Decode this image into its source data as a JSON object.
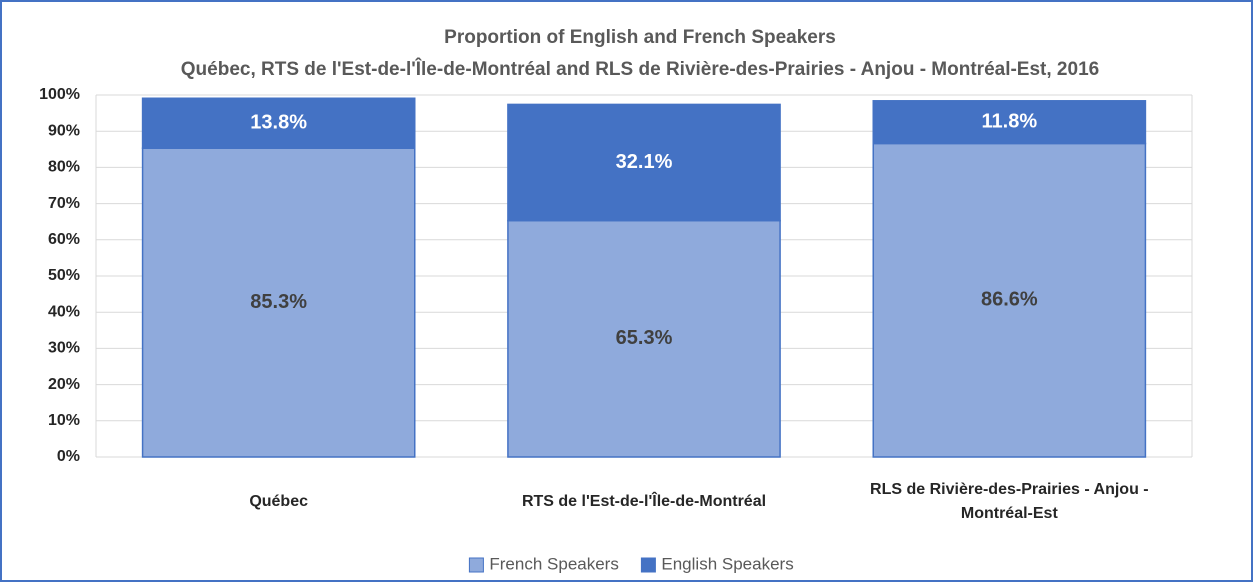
{
  "chart_data": {
    "type": "stacked_bar",
    "title": "Proportion of English and French Speakers",
    "subtitle": "Québec, RTS de l'Est-de-l'Île-de-Montréal and RLS de Rivière-des-Prairies - Anjou - Montréal-Est, 2016",
    "categories": [
      "Québec",
      "RTS de l'Est-de-l'Île-de-Montréal",
      "RLS de Rivière-des-Prairies - Anjou - Montréal-Est"
    ],
    "series": [
      {
        "name": "French Speakers",
        "color": "#8faadc",
        "values": [
          85.3,
          65.3,
          86.6
        ],
        "value_labels": [
          "85.3%",
          "65.3%",
          "86.6%"
        ]
      },
      {
        "name": "English Speakers",
        "color": "#4472c4",
        "values": [
          13.8,
          32.1,
          11.8
        ],
        "value_labels": [
          "13.8%",
          "32.1%",
          "11.8%"
        ]
      }
    ],
    "ylim": [
      0,
      100
    ],
    "yticks": [
      {
        "value": 0,
        "label": "0%"
      },
      {
        "value": 10,
        "label": "10%"
      },
      {
        "value": 20,
        "label": "20%"
      },
      {
        "value": 30,
        "label": "30%"
      },
      {
        "value": 40,
        "label": "40%"
      },
      {
        "value": 50,
        "label": "50%"
      },
      {
        "value": 60,
        "label": "60%"
      },
      {
        "value": 70,
        "label": "70%"
      },
      {
        "value": 80,
        "label": "80%"
      },
      {
        "value": 90,
        "label": "90%"
      },
      {
        "value": 100,
        "label": "100%"
      }
    ],
    "grid": true,
    "legend": "bottom"
  }
}
